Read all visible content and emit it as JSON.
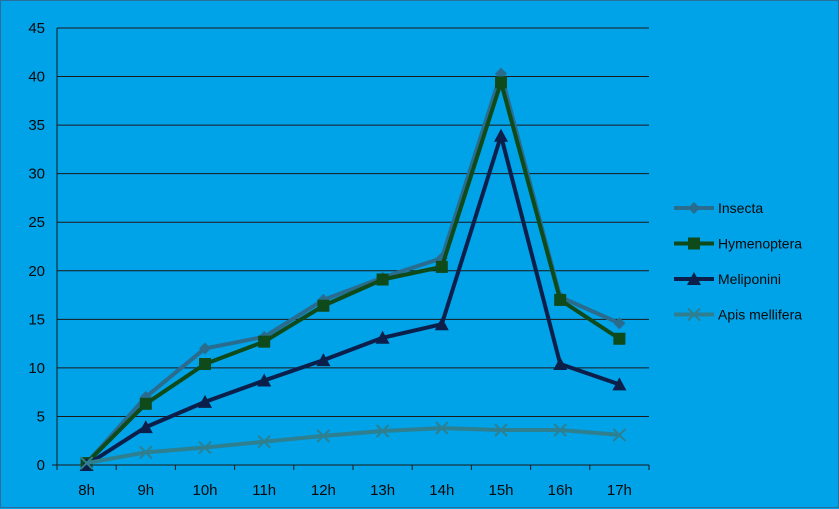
{
  "chart_data": {
    "type": "line",
    "categories": [
      "8h",
      "9h",
      "10h",
      "11h",
      "12h",
      "13h",
      "14h",
      "15h",
      "16h",
      "17h"
    ],
    "ylim": [
      0,
      45
    ],
    "yticks": [
      0,
      5,
      10,
      15,
      20,
      25,
      30,
      35,
      40,
      45
    ],
    "grid": true,
    "legend_position": "right",
    "series": [
      {
        "name": "Insecta",
        "marker": "diamond",
        "color": "#2A6C8E",
        "values": [
          0.2,
          7,
          12,
          13.2,
          17,
          19.3,
          21.3,
          40.3,
          17.3,
          14.6
        ]
      },
      {
        "name": "Hymenoptera",
        "marker": "square",
        "color": "#0F4A1A",
        "values": [
          0.2,
          6.3,
          10.4,
          12.7,
          16.4,
          19.1,
          20.4,
          39.4,
          17.0,
          13.0
        ]
      },
      {
        "name": "Meliponini",
        "marker": "triangle",
        "color": "#0B1F4A",
        "values": [
          0,
          3.9,
          6.5,
          8.7,
          10.8,
          13.1,
          14.5,
          33.9,
          10.4,
          8.3
        ]
      },
      {
        "name": "Apis mellifera",
        "marker": "x",
        "color": "#2E7F8F",
        "values": [
          0.2,
          1.3,
          1.8,
          2.4,
          3.0,
          3.5,
          3.8,
          3.6,
          3.6,
          3.1
        ]
      }
    ]
  }
}
